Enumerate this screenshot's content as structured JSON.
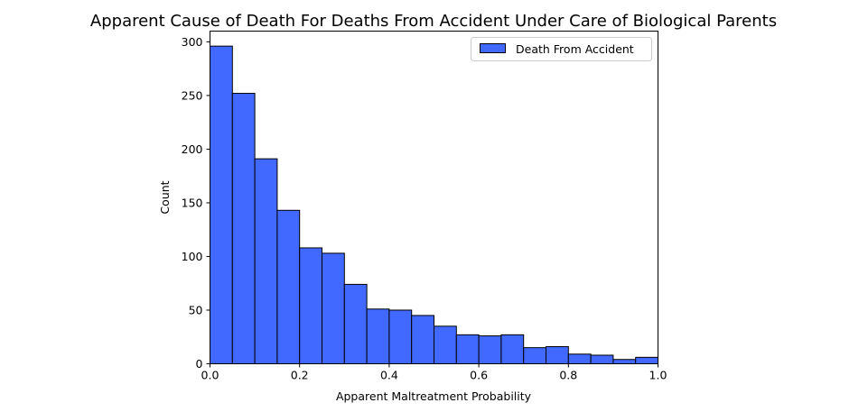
{
  "chart_data": {
    "type": "bar",
    "title": "Apparent Cause of Death For Deaths From Accident Under Care of Biological Parents",
    "xlabel": "Apparent Maltreatment Probability",
    "ylabel": "Count",
    "xlim": [
      0.0,
      1.0
    ],
    "ylim": [
      0,
      310
    ],
    "xticks": [
      "0.0",
      "0.2",
      "0.4",
      "0.6",
      "0.8",
      "1.0"
    ],
    "yticks": [
      "0",
      "50",
      "100",
      "150",
      "200",
      "250",
      "300"
    ],
    "bin_width": 0.05,
    "bins": [
      0.0,
      0.05,
      0.1,
      0.15,
      0.2,
      0.25,
      0.3,
      0.35,
      0.4,
      0.45,
      0.5,
      0.55,
      0.6,
      0.65,
      0.7,
      0.75,
      0.8,
      0.85,
      0.9,
      0.95
    ],
    "series": [
      {
        "name": "Death From Accident",
        "color": "#4169ff",
        "values": [
          296,
          252,
          191,
          143,
          108,
          103,
          74,
          51,
          50,
          45,
          35,
          27,
          26,
          27,
          15,
          16,
          9,
          8,
          4,
          6
        ]
      }
    ],
    "legend": "top-right",
    "grid": false
  }
}
